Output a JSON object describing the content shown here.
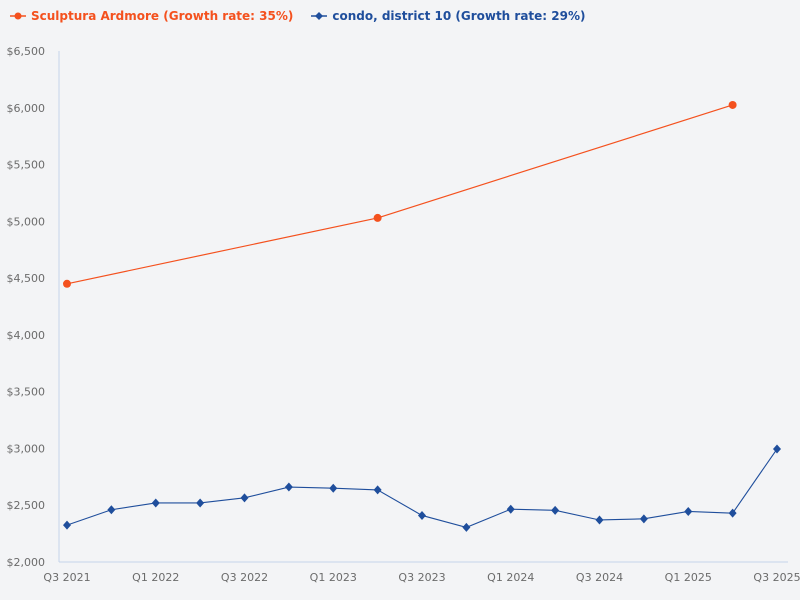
{
  "chart_data": {
    "type": "line",
    "title": "",
    "xlabel": "",
    "ylabel": "",
    "ylim": [
      2000,
      6500
    ],
    "yticks": [
      "$2,000",
      "$2,500",
      "$3,000",
      "$3,500",
      "$4,000",
      "$4,500",
      "$5,000",
      "$5,500",
      "$6,000",
      "$6,500"
    ],
    "ytick_values": [
      2000,
      2500,
      3000,
      3500,
      4000,
      4500,
      5000,
      5500,
      6000,
      6500
    ],
    "x": [
      "Q3 2021",
      "Q4 2021",
      "Q1 2022",
      "Q2 2022",
      "Q3 2022",
      "Q4 2022",
      "Q1 2023",
      "Q2 2023",
      "Q3 2023",
      "Q4 2023",
      "Q1 2024",
      "Q2 2024",
      "Q3 2024",
      "Q4 2024",
      "Q1 2025",
      "Q2 2025",
      "Q3 2025"
    ],
    "xticks": [
      "Q3 2021",
      "Q1 2022",
      "Q3 2022",
      "Q1 2023",
      "Q3 2023",
      "Q1 2024",
      "Q3 2024",
      "Q1 2025",
      "Q3 2025"
    ],
    "grid": false,
    "legend_position": "top-left",
    "series": [
      {
        "name": "Sculptura Ardmore (Growth rate: 35%)",
        "color": "#f4511e",
        "marker": "circle",
        "points": [
          {
            "x": "Q3 2021",
            "y": 4450
          },
          {
            "x": "Q2 2023",
            "y": 5030
          },
          {
            "x": "Q2 2025",
            "y": 6025
          }
        ]
      },
      {
        "name": "condo, district 10 (Growth rate: 29%)",
        "color": "#1f4e9c",
        "marker": "diamond",
        "points": [
          {
            "x": "Q3 2021",
            "y": 2325
          },
          {
            "x": "Q4 2021",
            "y": 2460
          },
          {
            "x": "Q1 2022",
            "y": 2520
          },
          {
            "x": "Q2 2022",
            "y": 2520
          },
          {
            "x": "Q3 2022",
            "y": 2565
          },
          {
            "x": "Q4 2022",
            "y": 2660
          },
          {
            "x": "Q1 2023",
            "y": 2650
          },
          {
            "x": "Q2 2023",
            "y": 2635
          },
          {
            "x": "Q3 2023",
            "y": 2410
          },
          {
            "x": "Q4 2023",
            "y": 2305
          },
          {
            "x": "Q1 2024",
            "y": 2465
          },
          {
            "x": "Q2 2024",
            "y": 2455
          },
          {
            "x": "Q3 2024",
            "y": 2370
          },
          {
            "x": "Q4 2024",
            "y": 2380
          },
          {
            "x": "Q1 2025",
            "y": 2445
          },
          {
            "x": "Q2 2025",
            "y": 2430
          },
          {
            "x": "Q3 2025",
            "y": 2995
          }
        ]
      }
    ]
  },
  "legend": {
    "items": [
      {
        "label": "Sculptura Ardmore (Growth rate: 35%)",
        "color": "#f4511e"
      },
      {
        "label": "condo, district 10 (Growth rate: 29%)",
        "color": "#1f4e9c"
      }
    ]
  },
  "colors": {
    "axis": "#c5d3ea",
    "tick_text": "#6b6b6b",
    "background": "#f3f4f6"
  }
}
